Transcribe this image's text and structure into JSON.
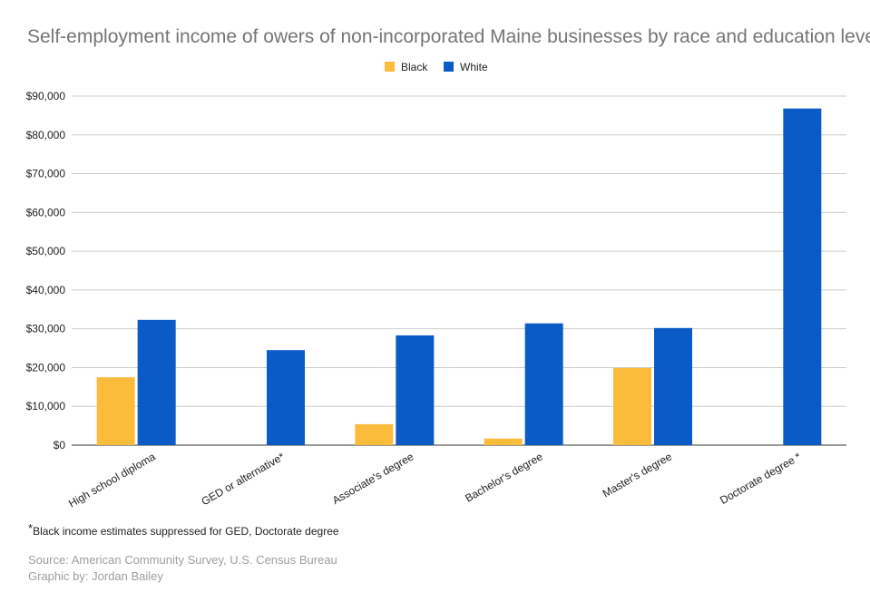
{
  "chart_data": {
    "type": "bar",
    "title": "Self-employment income of owers of non-incorporated Maine businesses by race and education level",
    "categories": [
      "High school diploma",
      "GED or alternative*",
      "Associate's degree",
      "Bachelor's degree",
      "Master's degree",
      "Doctorate degree *"
    ],
    "series": [
      {
        "name": "Black",
        "color": "#fbbc3c",
        "values": [
          17500,
          null,
          5400,
          1700,
          19900,
          null
        ]
      },
      {
        "name": "White",
        "color": "#0b5bc7",
        "values": [
          32300,
          24500,
          28300,
          31400,
          30200,
          86800
        ]
      }
    ],
    "ylim": [
      0,
      90000
    ],
    "yticks": [
      0,
      10000,
      20000,
      30000,
      40000,
      50000,
      60000,
      70000,
      80000,
      90000
    ],
    "ytick_labels": [
      "$0",
      "$10,000",
      "$20,000",
      "$30,000",
      "$40,000",
      "$50,000",
      "$60,000",
      "$70,000",
      "$80,000",
      "$90,000"
    ],
    "grid": true,
    "legend_position": "top-center"
  },
  "footnote": {
    "mark": "*",
    "text": "Black income estimates suppressed for GED, Doctorate degree"
  },
  "source": {
    "line1": "Source: American Community Survey, U.S. Census Bureau",
    "line2": "Graphic by: Jordan Bailey"
  }
}
